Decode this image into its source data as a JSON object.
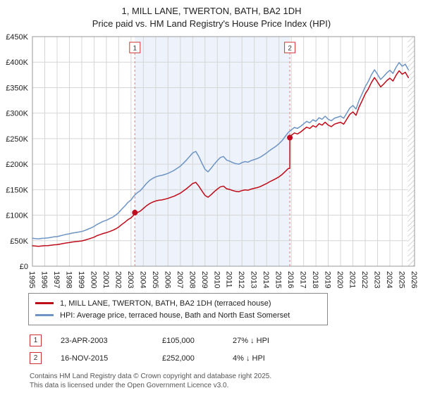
{
  "header": {
    "title": "1, MILL LANE, TWERTON, BATH, BA2 1DH",
    "subtitle": "Price paid vs. HM Land Registry's House Price Index (HPI)"
  },
  "chart_data": {
    "type": "line",
    "x_range": [
      1995,
      2026
    ],
    "y_range": [
      0,
      450000
    ],
    "y_step": 50000,
    "y_ticks": [
      "£0",
      "£50K",
      "£100K",
      "£150K",
      "£200K",
      "£250K",
      "£300K",
      "£350K",
      "£400K",
      "£450K"
    ],
    "x_ticks": [
      1995,
      1996,
      1997,
      1998,
      1999,
      2000,
      2001,
      2002,
      2003,
      2004,
      2005,
      2006,
      2007,
      2008,
      2009,
      2010,
      2011,
      2012,
      2013,
      2014,
      2015,
      2016,
      2017,
      2018,
      2019,
      2020,
      2021,
      2022,
      2023,
      2024,
      2025,
      2026
    ],
    "grid": true,
    "legend_position": "bottom",
    "shaded_span": [
      2003.31,
      2015.88
    ],
    "hatched_span": [
      2025.45,
      2026
    ],
    "colors": {
      "property_line": "#bf0a18",
      "hpi_line": "#6d94c4",
      "marker": "#c00c20",
      "accent": "#cc3333",
      "shaded": "#edf2fb",
      "dashed": "#e08080",
      "grid": "#d6d6d6"
    },
    "sales": [
      {
        "label": "1",
        "x": 2003.31,
        "y": 105000
      },
      {
        "label": "2",
        "x": 2015.88,
        "y": 252000
      }
    ],
    "series": [
      {
        "name": "1, MILL LANE, TWERTON, BATH, BA2 1DH (terraced house)",
        "color": "#bf0a18",
        "points": [
          [
            1995,
            40000
          ],
          [
            1995.25,
            39500
          ],
          [
            1995.5,
            39000
          ],
          [
            1995.75,
            39800
          ],
          [
            1996,
            40200
          ],
          [
            1996.25,
            40500
          ],
          [
            1996.5,
            41200
          ],
          [
            1996.75,
            42000
          ],
          [
            1997,
            42300
          ],
          [
            1997.25,
            43400
          ],
          [
            1997.5,
            44500
          ],
          [
            1997.75,
            45600
          ],
          [
            1998,
            46400
          ],
          [
            1998.25,
            47500
          ],
          [
            1998.5,
            48200
          ],
          [
            1998.75,
            48900
          ],
          [
            1999,
            49600
          ],
          [
            1999.25,
            51100
          ],
          [
            1999.5,
            52900
          ],
          [
            1999.75,
            54800
          ],
          [
            2000,
            56900
          ],
          [
            2000.25,
            59900
          ],
          [
            2000.5,
            62000
          ],
          [
            2000.75,
            64200
          ],
          [
            2001,
            65700
          ],
          [
            2001.25,
            67900
          ],
          [
            2001.5,
            70100
          ],
          [
            2001.75,
            73000
          ],
          [
            2002,
            76700
          ],
          [
            2002.25,
            81800
          ],
          [
            2002.5,
            86100
          ],
          [
            2002.75,
            91300
          ],
          [
            2003,
            94900
          ],
          [
            2003.25,
            100700
          ],
          [
            2003.5,
            105100
          ],
          [
            2003.75,
            108000
          ],
          [
            2004,
            113200
          ],
          [
            2004.25,
            118300
          ],
          [
            2004.5,
            122600
          ],
          [
            2004.75,
            125600
          ],
          [
            2005,
            127800
          ],
          [
            2005.25,
            129200
          ],
          [
            2005.5,
            129900
          ],
          [
            2005.75,
            131400
          ],
          [
            2006,
            132900
          ],
          [
            2006.25,
            135100
          ],
          [
            2006.5,
            137200
          ],
          [
            2006.75,
            140200
          ],
          [
            2007,
            143100
          ],
          [
            2007.25,
            147500
          ],
          [
            2007.5,
            151800
          ],
          [
            2007.75,
            157000
          ],
          [
            2008,
            162100
          ],
          [
            2008.25,
            164300
          ],
          [
            2008.5,
            157000
          ],
          [
            2008.75,
            147500
          ],
          [
            2009,
            138700
          ],
          [
            2009.25,
            135100
          ],
          [
            2009.5,
            140200
          ],
          [
            2009.75,
            146000
          ],
          [
            2010,
            151100
          ],
          [
            2010.25,
            155500
          ],
          [
            2010.5,
            157000
          ],
          [
            2010.75,
            151800
          ],
          [
            2011,
            150400
          ],
          [
            2011.25,
            148200
          ],
          [
            2011.5,
            146700
          ],
          [
            2011.75,
            146000
          ],
          [
            2012,
            148200
          ],
          [
            2012.25,
            149700
          ],
          [
            2012.5,
            148900
          ],
          [
            2012.75,
            151100
          ],
          [
            2013,
            152600
          ],
          [
            2013.25,
            154000
          ],
          [
            2013.5,
            156200
          ],
          [
            2013.75,
            159100
          ],
          [
            2014,
            162100
          ],
          [
            2014.25,
            165700
          ],
          [
            2014.5,
            168600
          ],
          [
            2014.75,
            171600
          ],
          [
            2015,
            175200
          ],
          [
            2015.25,
            179600
          ],
          [
            2015.5,
            185400
          ],
          [
            2015.75,
            191300
          ],
          [
            2015.88,
            191800
          ],
          [
            2015.89,
            252000
          ],
          [
            2016,
            256300
          ],
          [
            2016.25,
            261100
          ],
          [
            2016.5,
            259200
          ],
          [
            2016.75,
            263000
          ],
          [
            2017,
            267800
          ],
          [
            2017.25,
            272600
          ],
          [
            2017.5,
            269800
          ],
          [
            2017.75,
            275500
          ],
          [
            2018,
            272600
          ],
          [
            2018.25,
            279400
          ],
          [
            2018.5,
            276500
          ],
          [
            2018.75,
            282200
          ],
          [
            2019,
            276500
          ],
          [
            2019.25,
            273600
          ],
          [
            2019.5,
            278400
          ],
          [
            2019.75,
            280300
          ],
          [
            2020,
            282200
          ],
          [
            2020.25,
            278400
          ],
          [
            2020.5,
            288000
          ],
          [
            2020.75,
            297600
          ],
          [
            2021,
            302400
          ],
          [
            2021.25,
            295700
          ],
          [
            2021.5,
            312000
          ],
          [
            2021.75,
            324500
          ],
          [
            2022,
            337900
          ],
          [
            2022.25,
            347500
          ],
          [
            2022.5,
            360000
          ],
          [
            2022.75,
            369600
          ],
          [
            2023,
            361000
          ],
          [
            2023.25,
            351400
          ],
          [
            2023.5,
            357100
          ],
          [
            2023.75,
            363800
          ],
          [
            2024,
            368600
          ],
          [
            2024.25,
            362900
          ],
          [
            2024.5,
            374400
          ],
          [
            2024.75,
            383000
          ],
          [
            2025,
            376300
          ],
          [
            2025.25,
            380200
          ],
          [
            2025.5,
            369600
          ]
        ]
      },
      {
        "name": "HPI: Average price, terraced house, Bath and North East Somerset",
        "color": "#6d94c4",
        "points": [
          [
            1995,
            55000
          ],
          [
            1995.25,
            54000
          ],
          [
            1995.5,
            53500
          ],
          [
            1995.75,
            54500
          ],
          [
            1996,
            55000
          ],
          [
            1996.25,
            55500
          ],
          [
            1996.5,
            56500
          ],
          [
            1996.75,
            57500
          ],
          [
            1997,
            58000
          ],
          [
            1997.25,
            59500
          ],
          [
            1997.5,
            61000
          ],
          [
            1997.75,
            62500
          ],
          [
            1998,
            63500
          ],
          [
            1998.25,
            65000
          ],
          [
            1998.5,
            66000
          ],
          [
            1998.75,
            67000
          ],
          [
            1999,
            68000
          ],
          [
            1999.25,
            70000
          ],
          [
            1999.5,
            72500
          ],
          [
            1999.75,
            75000
          ],
          [
            2000,
            78000
          ],
          [
            2000.25,
            82000
          ],
          [
            2000.5,
            85000
          ],
          [
            2000.75,
            88000
          ],
          [
            2001,
            90000
          ],
          [
            2001.25,
            93000
          ],
          [
            2001.5,
            96000
          ],
          [
            2001.75,
            100000
          ],
          [
            2002,
            105000
          ],
          [
            2002.25,
            112000
          ],
          [
            2002.5,
            118000
          ],
          [
            2002.75,
            125000
          ],
          [
            2003,
            130000
          ],
          [
            2003.25,
            138000
          ],
          [
            2003.5,
            144000
          ],
          [
            2003.75,
            148000
          ],
          [
            2004,
            155000
          ],
          [
            2004.25,
            162000
          ],
          [
            2004.5,
            168000
          ],
          [
            2004.75,
            172000
          ],
          [
            2005,
            175000
          ],
          [
            2005.25,
            177000
          ],
          [
            2005.5,
            178000
          ],
          [
            2005.75,
            180000
          ],
          [
            2006,
            182000
          ],
          [
            2006.25,
            185000
          ],
          [
            2006.5,
            188000
          ],
          [
            2006.75,
            192000
          ],
          [
            2007,
            196000
          ],
          [
            2007.25,
            202000
          ],
          [
            2007.5,
            208000
          ],
          [
            2007.75,
            215000
          ],
          [
            2008,
            222000
          ],
          [
            2008.25,
            225000
          ],
          [
            2008.5,
            215000
          ],
          [
            2008.75,
            202000
          ],
          [
            2009,
            190000
          ],
          [
            2009.25,
            185000
          ],
          [
            2009.5,
            192000
          ],
          [
            2009.75,
            200000
          ],
          [
            2010,
            207000
          ],
          [
            2010.25,
            213000
          ],
          [
            2010.5,
            215000
          ],
          [
            2010.75,
            208000
          ],
          [
            2011,
            206000
          ],
          [
            2011.25,
            203000
          ],
          [
            2011.5,
            201000
          ],
          [
            2011.75,
            200000
          ],
          [
            2012,
            203000
          ],
          [
            2012.25,
            205000
          ],
          [
            2012.5,
            204000
          ],
          [
            2012.75,
            207000
          ],
          [
            2013,
            209000
          ],
          [
            2013.25,
            211000
          ],
          [
            2013.5,
            214000
          ],
          [
            2013.75,
            218000
          ],
          [
            2014,
            222000
          ],
          [
            2014.25,
            227000
          ],
          [
            2014.5,
            231000
          ],
          [
            2014.75,
            235000
          ],
          [
            2015,
            240000
          ],
          [
            2015.25,
            246000
          ],
          [
            2015.5,
            254000
          ],
          [
            2015.75,
            262000
          ],
          [
            2016,
            267000
          ],
          [
            2016.25,
            272000
          ],
          [
            2016.5,
            270000
          ],
          [
            2016.75,
            274000
          ],
          [
            2017,
            279000
          ],
          [
            2017.25,
            284000
          ],
          [
            2017.5,
            281000
          ],
          [
            2017.75,
            287000
          ],
          [
            2018,
            284000
          ],
          [
            2018.25,
            291000
          ],
          [
            2018.5,
            288000
          ],
          [
            2018.75,
            294000
          ],
          [
            2019,
            288000
          ],
          [
            2019.25,
            285000
          ],
          [
            2019.5,
            290000
          ],
          [
            2019.75,
            292000
          ],
          [
            2020,
            294000
          ],
          [
            2020.25,
            290000
          ],
          [
            2020.5,
            300000
          ],
          [
            2020.75,
            310000
          ],
          [
            2021,
            315000
          ],
          [
            2021.25,
            308000
          ],
          [
            2021.5,
            325000
          ],
          [
            2021.75,
            338000
          ],
          [
            2022,
            352000
          ],
          [
            2022.25,
            362000
          ],
          [
            2022.5,
            375000
          ],
          [
            2022.75,
            385000
          ],
          [
            2023,
            376000
          ],
          [
            2023.25,
            366000
          ],
          [
            2023.5,
            372000
          ],
          [
            2023.75,
            379000
          ],
          [
            2024,
            384000
          ],
          [
            2024.25,
            378000
          ],
          [
            2024.5,
            390000
          ],
          [
            2024.75,
            399000
          ],
          [
            2025,
            392000
          ],
          [
            2025.25,
            396000
          ],
          [
            2025.5,
            385000
          ]
        ]
      }
    ]
  },
  "legend": {
    "items": [
      {
        "label": "1, MILL LANE, TWERTON, BATH, BA2 1DH (terraced house)",
        "color": "#bf0a18"
      },
      {
        "label": "HPI: Average price, terraced house, Bath and North East Somerset",
        "color": "#6d94c4"
      }
    ]
  },
  "transactions": [
    {
      "num": "1",
      "date": "23-APR-2003",
      "price": "£105,000",
      "hpi": "27% ↓ HPI"
    },
    {
      "num": "2",
      "date": "16-NOV-2015",
      "price": "£252,000",
      "hpi": "4% ↓ HPI"
    }
  ],
  "footer": {
    "line1": "Contains HM Land Registry data © Crown copyright and database right 2025.",
    "line2": "This data is licensed under the Open Government Licence v3.0."
  }
}
